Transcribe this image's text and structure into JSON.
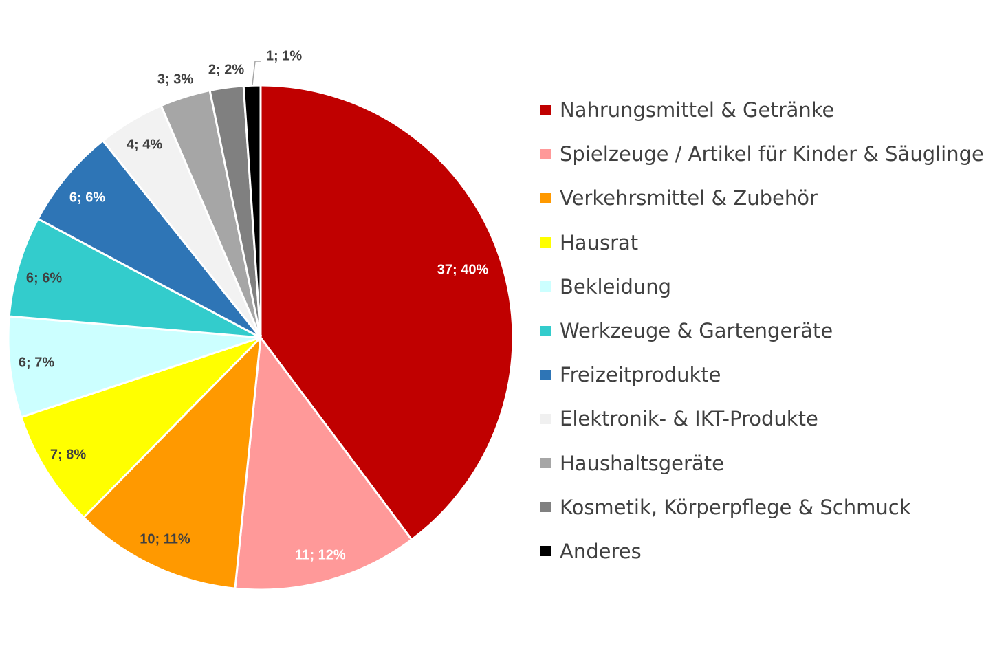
{
  "chart_data": {
    "type": "pie",
    "legend_position": "right",
    "slices": [
      {
        "name": "Nahrungsmittel & Getränke",
        "value": 37,
        "percent": "40%",
        "label": "37; 40%",
        "color": "#C00000",
        "label_color": "#ffffff"
      },
      {
        "name": "Spielzeuge / Artikel für Kinder & Säuglinge",
        "value": 11,
        "percent": "12%",
        "label": "11; 12%",
        "color": "#FF9999",
        "label_color": "#ffffff"
      },
      {
        "name": "Verkehrsmittel & Zubehör",
        "value": 10,
        "percent": "11%",
        "label": "10; 11%",
        "color": "#FF9900",
        "label_color": "#404040"
      },
      {
        "name": "Hausrat",
        "value": 7,
        "percent": "8%",
        "label": "7; 8%",
        "color": "#FFFF00",
        "label_color": "#404040"
      },
      {
        "name": "Bekleidung",
        "value": 6,
        "percent": "7%",
        "label": "6; 7%",
        "color": "#CCFFFF",
        "label_color": "#404040"
      },
      {
        "name": "Werkzeuge & Gartengeräte",
        "value": 6,
        "percent": "6%",
        "label": "6; 6%",
        "color": "#33CCCC",
        "label_color": "#404040"
      },
      {
        "name": "Freizeitprodukte",
        "value": 6,
        "percent": "6%",
        "label": "6; 6%",
        "color": "#2E75B6",
        "label_color": "#ffffff"
      },
      {
        "name": "Elektronik- & IKT-Produkte",
        "value": 4,
        "percent": "4%",
        "label": "4; 4%",
        "color": "#F2F2F2",
        "label_color": "#404040"
      },
      {
        "name": "Haushaltsgeräte",
        "value": 3,
        "percent": "3%",
        "label": "3; 3%",
        "color": "#A6A6A6",
        "label_color": "#404040"
      },
      {
        "name": "Kosmetik, Körperpflege & Schmuck",
        "value": 2,
        "percent": "2%",
        "label": "2; 2%",
        "color": "#808080",
        "label_color": "#404040"
      },
      {
        "name": "Anderes",
        "value": 1,
        "percent": "1%",
        "label": "1; 1%",
        "color": "#000000",
        "label_color": "#404040"
      }
    ]
  }
}
